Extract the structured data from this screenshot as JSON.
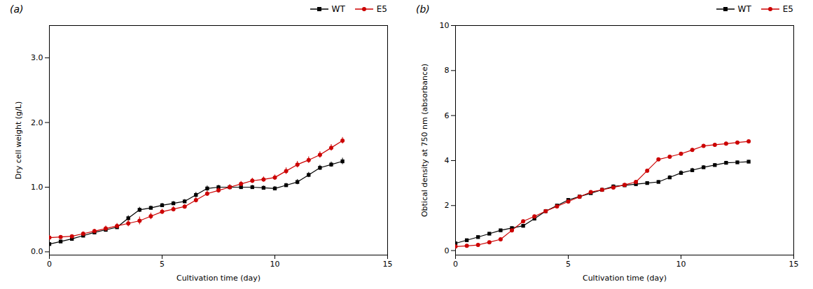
{
  "chart_data": [
    {
      "type": "line",
      "title": "(a)",
      "xlabel": "Cultivation time (day)",
      "ylabel": "Dry cell weight (g/L)",
      "xlim": [
        0,
        15
      ],
      "ylim": [
        -0.05,
        3.5
      ],
      "xticks": [
        0,
        5,
        10,
        15
      ],
      "yticks": [
        0,
        1,
        2,
        3
      ],
      "grid": false,
      "legend": "upper right",
      "x": [
        0,
        0.5,
        1,
        1.5,
        2,
        2.5,
        3,
        3.5,
        4,
        4.5,
        5,
        5.5,
        6,
        6.5,
        7,
        7.5,
        8,
        8.5,
        9,
        9.5,
        10,
        10.5,
        11,
        11.5,
        12,
        12.5,
        13
      ],
      "series": [
        {
          "name": "WT",
          "color": "#000000",
          "marker": "square",
          "values": [
            0.12,
            0.16,
            0.2,
            0.25,
            0.3,
            0.34,
            0.38,
            0.52,
            0.65,
            0.68,
            0.72,
            0.75,
            0.78,
            0.88,
            0.98,
            1.0,
            1.0,
            1.0,
            1.0,
            0.99,
            0.98,
            1.03,
            1.08,
            1.19,
            1.3,
            1.35,
            1.4
          ],
          "errors": [
            0.02,
            0.02,
            0.02,
            0.02,
            0.03,
            0.03,
            0.03,
            0.04,
            0.04,
            0.03,
            0.03,
            0.03,
            0.03,
            0.04,
            0.04,
            0.03,
            0.03,
            0.03,
            0.03,
            0.03,
            0.03,
            0.03,
            0.04,
            0.04,
            0.04,
            0.04,
            0.05
          ]
        },
        {
          "name": "E5",
          "color": "#cc0000",
          "marker": "circle",
          "values": [
            0.22,
            0.23,
            0.24,
            0.28,
            0.32,
            0.36,
            0.4,
            0.44,
            0.48,
            0.55,
            0.62,
            0.66,
            0.7,
            0.8,
            0.9,
            0.95,
            1.0,
            1.05,
            1.1,
            1.12,
            1.15,
            1.25,
            1.35,
            1.42,
            1.5,
            1.61,
            1.72
          ],
          "errors": [
            0.03,
            0.02,
            0.02,
            0.03,
            0.03,
            0.04,
            0.04,
            0.05,
            0.06,
            0.05,
            0.04,
            0.04,
            0.03,
            0.04,
            0.04,
            0.04,
            0.04,
            0.04,
            0.04,
            0.04,
            0.04,
            0.05,
            0.05,
            0.05,
            0.05,
            0.05,
            0.05
          ]
        }
      ]
    },
    {
      "type": "line",
      "title": "(b)",
      "xlabel": "Cultivation time (day)",
      "ylabel": "Obtical density at 750 nm (absorbance)",
      "xlim": [
        0,
        15
      ],
      "ylim": [
        -0.2,
        10
      ],
      "xticks": [
        0,
        5,
        10,
        15
      ],
      "yticks": [
        0,
        2,
        4,
        6,
        8,
        10
      ],
      "grid": false,
      "legend": "upper right",
      "x": [
        0,
        0.5,
        1,
        1.5,
        2,
        2.5,
        3,
        3.5,
        4,
        4.5,
        5,
        5.5,
        6,
        6.5,
        7,
        7.5,
        8,
        8.5,
        9,
        9.5,
        10,
        10.5,
        11,
        11.5,
        12,
        12.5,
        13
      ],
      "series": [
        {
          "name": "WT",
          "color": "#000000",
          "marker": "square",
          "values": [
            0.32,
            0.46,
            0.6,
            0.75,
            0.9,
            1.0,
            1.1,
            1.42,
            1.75,
            2.0,
            2.25,
            2.4,
            2.55,
            2.7,
            2.85,
            2.9,
            2.95,
            3.0,
            3.05,
            3.25,
            3.45,
            3.57,
            3.7,
            3.8,
            3.9,
            3.92,
            3.95
          ],
          "errors": [
            0.04,
            0.04,
            0.04,
            0.05,
            0.05,
            0.05,
            0.05,
            0.06,
            0.06,
            0.06,
            0.06,
            0.06,
            0.06,
            0.07,
            0.07,
            0.06,
            0.06,
            0.06,
            0.06,
            0.08,
            0.1,
            0.09,
            0.08,
            0.07,
            0.07,
            0.06,
            0.06
          ]
        },
        {
          "name": "E5",
          "color": "#cc0000",
          "marker": "circle",
          "values": [
            0.18,
            0.21,
            0.25,
            0.37,
            0.5,
            0.9,
            1.3,
            1.52,
            1.75,
            1.96,
            2.18,
            2.39,
            2.6,
            2.7,
            2.8,
            2.92,
            3.05,
            3.55,
            4.05,
            4.17,
            4.3,
            4.47,
            4.65,
            4.7,
            4.75,
            4.8,
            4.85
          ],
          "errors": [
            0.03,
            0.03,
            0.03,
            0.04,
            0.04,
            0.05,
            0.06,
            0.06,
            0.06,
            0.06,
            0.06,
            0.06,
            0.06,
            0.06,
            0.06,
            0.07,
            0.07,
            0.07,
            0.07,
            0.07,
            0.07,
            0.07,
            0.07,
            0.07,
            0.07,
            0.07,
            0.07
          ]
        }
      ]
    }
  ]
}
